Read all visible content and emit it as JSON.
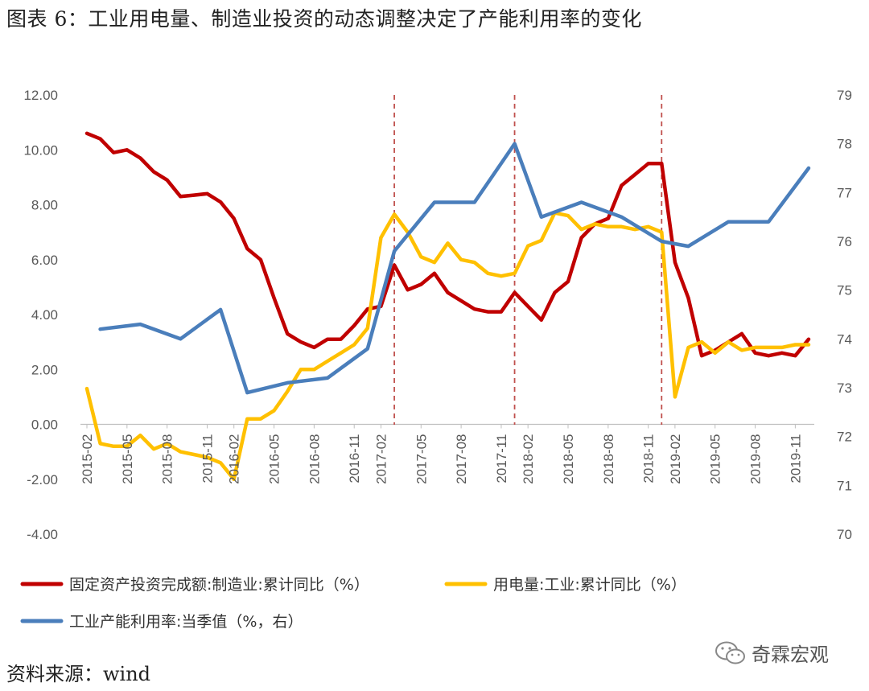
{
  "title": "图表 6：工业用电量、制造业投资的动态调整决定了产能利用率的变化",
  "source": "资料来源：wind",
  "watermark": "奇霖宏观",
  "chart_data": {
    "type": "line",
    "y_left": {
      "ylim": [
        -4,
        12
      ],
      "ticks": [
        "12.00",
        "10.00",
        "8.00",
        "6.00",
        "4.00",
        "2.00",
        "0.00",
        "-2.00",
        "-4.00"
      ]
    },
    "y_right": {
      "ylim": [
        70,
        79
      ],
      "ticks": [
        "79",
        "78",
        "77",
        "76",
        "75",
        "74",
        "73",
        "72",
        "71",
        "70"
      ]
    },
    "x_tick_labels": [
      "2015-02",
      "2015-05",
      "2015-08",
      "2015-11",
      "2016-02",
      "2016-05",
      "2016-08",
      "2016-11",
      "2017-02",
      "2017-05",
      "2017-08",
      "2017-11",
      "2018-02",
      "2018-05",
      "2018-08",
      "2018-11",
      "2019-02",
      "2019-05",
      "2019-08",
      "2019-11"
    ],
    "x_months": [
      "2015-02",
      "2015-03",
      "2015-04",
      "2015-05",
      "2015-06",
      "2015-07",
      "2015-08",
      "2015-09",
      "2015-10",
      "2015-11",
      "2015-12",
      "2016-02",
      "2016-03",
      "2016-04",
      "2016-05",
      "2016-06",
      "2016-07",
      "2016-08",
      "2016-09",
      "2016-10",
      "2016-11",
      "2016-12",
      "2017-02",
      "2017-03",
      "2017-04",
      "2017-05",
      "2017-06",
      "2017-07",
      "2017-08",
      "2017-09",
      "2017-10",
      "2017-11",
      "2017-12",
      "2018-02",
      "2018-03",
      "2018-04",
      "2018-05",
      "2018-06",
      "2018-07",
      "2018-08",
      "2018-09",
      "2018-10",
      "2018-11",
      "2018-12",
      "2019-02",
      "2019-03",
      "2019-04",
      "2019-05",
      "2019-06",
      "2019-07",
      "2019-08",
      "2019-09",
      "2019-10",
      "2019-11",
      "2019-12"
    ],
    "vlines": [
      "2017-03",
      "2017-12",
      "2018-12"
    ],
    "series": [
      {
        "name": "固定资产投资完成额:制造业:累计同比（%）",
        "axis": "left",
        "color": "#C00000",
        "points": [
          [
            "2015-02",
            10.6
          ],
          [
            "2015-03",
            10.4
          ],
          [
            "2015-04",
            9.9
          ],
          [
            "2015-05",
            10.0
          ],
          [
            "2015-06",
            9.7
          ],
          [
            "2015-07",
            9.2
          ],
          [
            "2015-08",
            8.9
          ],
          [
            "2015-09",
            8.3
          ],
          [
            "2015-10",
            8.35
          ],
          [
            "2015-11",
            8.4
          ],
          [
            "2015-12",
            8.1
          ],
          [
            "2016-02",
            7.5
          ],
          [
            "2016-03",
            6.4
          ],
          [
            "2016-04",
            6.0
          ],
          [
            "2016-05",
            4.6
          ],
          [
            "2016-06",
            3.3
          ],
          [
            "2016-07",
            3.0
          ],
          [
            "2016-08",
            2.8
          ],
          [
            "2016-09",
            3.1
          ],
          [
            "2016-10",
            3.1
          ],
          [
            "2016-11",
            3.6
          ],
          [
            "2016-12",
            4.2
          ],
          [
            "2017-02",
            4.3
          ],
          [
            "2017-03",
            5.8
          ],
          [
            "2017-04",
            4.9
          ],
          [
            "2017-05",
            5.1
          ],
          [
            "2017-06",
            5.5
          ],
          [
            "2017-07",
            4.8
          ],
          [
            "2017-08",
            4.5
          ],
          [
            "2017-09",
            4.2
          ],
          [
            "2017-10",
            4.1
          ],
          [
            "2017-11",
            4.1
          ],
          [
            "2017-12",
            4.8
          ],
          [
            "2018-02",
            4.3
          ],
          [
            "2018-03",
            3.8
          ],
          [
            "2018-04",
            4.8
          ],
          [
            "2018-05",
            5.2
          ],
          [
            "2018-06",
            6.8
          ],
          [
            "2018-07",
            7.3
          ],
          [
            "2018-08",
            7.5
          ],
          [
            "2018-09",
            8.7
          ],
          [
            "2018-10",
            9.1
          ],
          [
            "2018-11",
            9.5
          ],
          [
            "2018-12",
            9.5
          ],
          [
            "2019-02",
            5.9
          ],
          [
            "2019-03",
            4.6
          ],
          [
            "2019-04",
            2.5
          ],
          [
            "2019-05",
            2.7
          ],
          [
            "2019-06",
            3.0
          ],
          [
            "2019-07",
            3.3
          ],
          [
            "2019-08",
            2.6
          ],
          [
            "2019-09",
            2.5
          ],
          [
            "2019-10",
            2.6
          ],
          [
            "2019-11",
            2.5
          ],
          [
            "2019-12",
            3.1
          ]
        ]
      },
      {
        "name": "用电量:工业:累计同比（%）",
        "axis": "left",
        "color": "#FFC000",
        "points": [
          [
            "2015-02",
            1.3
          ],
          [
            "2015-03",
            -0.7
          ],
          [
            "2015-04",
            -0.8
          ],
          [
            "2015-05",
            -0.8
          ],
          [
            "2015-06",
            -0.4
          ],
          [
            "2015-07",
            -0.9
          ],
          [
            "2015-08",
            -0.7
          ],
          [
            "2015-09",
            -1.0
          ],
          [
            "2015-10",
            -1.1
          ],
          [
            "2015-11",
            -1.2
          ],
          [
            "2015-12",
            -1.4
          ],
          [
            "2016-02",
            -2.0
          ],
          [
            "2016-03",
            0.2
          ],
          [
            "2016-04",
            0.2
          ],
          [
            "2016-05",
            0.5
          ],
          [
            "2016-06",
            1.2
          ],
          [
            "2016-07",
            2.0
          ],
          [
            "2016-08",
            2.0
          ],
          [
            "2016-09",
            2.3
          ],
          [
            "2016-10",
            2.6
          ],
          [
            "2016-11",
            2.9
          ],
          [
            "2016-12",
            3.5
          ],
          [
            "2017-02",
            6.8
          ],
          [
            "2017-03",
            7.65
          ],
          [
            "2017-04",
            7.0
          ],
          [
            "2017-05",
            6.1
          ],
          [
            "2017-06",
            5.9
          ],
          [
            "2017-07",
            6.6
          ],
          [
            "2017-08",
            6.0
          ],
          [
            "2017-09",
            5.9
          ],
          [
            "2017-10",
            5.5
          ],
          [
            "2017-11",
            5.4
          ],
          [
            "2017-12",
            5.5
          ],
          [
            "2018-02",
            6.5
          ],
          [
            "2018-03",
            6.7
          ],
          [
            "2018-04",
            7.7
          ],
          [
            "2018-05",
            7.6
          ],
          [
            "2018-06",
            7.1
          ],
          [
            "2018-07",
            7.3
          ],
          [
            "2018-08",
            7.2
          ],
          [
            "2018-09",
            7.2
          ],
          [
            "2018-10",
            7.1
          ],
          [
            "2018-11",
            7.2
          ],
          [
            "2018-12",
            7.0
          ],
          [
            "2019-02",
            1.0
          ],
          [
            "2019-03",
            2.8
          ],
          [
            "2019-04",
            3.0
          ],
          [
            "2019-05",
            2.6
          ],
          [
            "2019-06",
            3.0
          ],
          [
            "2019-07",
            2.7
          ],
          [
            "2019-08",
            2.8
          ],
          [
            "2019-09",
            2.8
          ],
          [
            "2019-10",
            2.8
          ],
          [
            "2019-11",
            2.9
          ],
          [
            "2019-12",
            2.9
          ]
        ]
      },
      {
        "name": "工业产能利用率:当季值（%，右）",
        "axis": "right",
        "color": "#4A7EBB",
        "points": [
          [
            "2015-03",
            74.2
          ],
          [
            "2015-06",
            74.3
          ],
          [
            "2015-09",
            74.0
          ],
          [
            "2015-12",
            74.6
          ],
          [
            "2016-03",
            72.9
          ],
          [
            "2016-06",
            73.1
          ],
          [
            "2016-09",
            73.2
          ],
          [
            "2016-12",
            73.8
          ],
          [
            "2017-03",
            75.8
          ],
          [
            "2017-06",
            76.8
          ],
          [
            "2017-09",
            76.8
          ],
          [
            "2017-12",
            78.0
          ],
          [
            "2018-03",
            76.5
          ],
          [
            "2018-06",
            76.8
          ],
          [
            "2018-09",
            76.5
          ],
          [
            "2018-12",
            76.0
          ],
          [
            "2019-03",
            75.9
          ],
          [
            "2019-06",
            76.4
          ],
          [
            "2019-09",
            76.4
          ],
          [
            "2019-12",
            77.5
          ]
        ]
      }
    ]
  }
}
